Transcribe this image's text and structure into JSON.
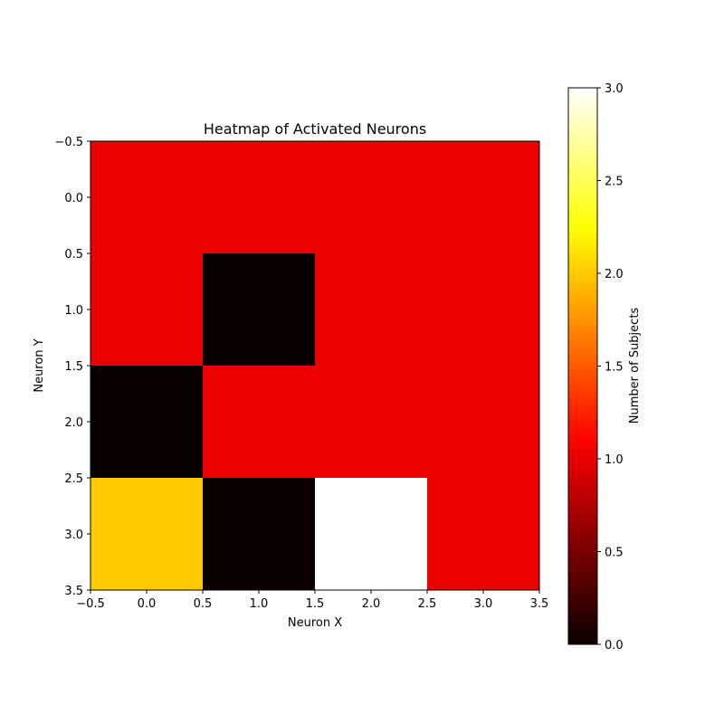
{
  "chart_data": {
    "type": "heatmap",
    "title": "Heatmap of Activated Neurons",
    "xlabel": "Neuron X",
    "ylabel": "Neuron Y",
    "colorbar_label": "Number of Subjects",
    "colormap": "hot",
    "vmin": 0.0,
    "vmax": 3.0,
    "xlim": [
      -0.5,
      3.5
    ],
    "ylim": [
      3.5,
      -0.5
    ],
    "x_ticks": [
      "−0.5",
      "0.0",
      "0.5",
      "1.0",
      "1.5",
      "2.0",
      "2.5",
      "3.0",
      "3.5"
    ],
    "y_ticks": [
      "−0.5",
      "0.0",
      "0.5",
      "1.0",
      "1.5",
      "2.0",
      "2.5",
      "3.0",
      "3.5"
    ],
    "colorbar_ticks": [
      "0.0",
      "0.5",
      "1.0",
      "1.5",
      "2.0",
      "2.5",
      "3.0"
    ],
    "values": [
      [
        1,
        1,
        1,
        1
      ],
      [
        1,
        0,
        1,
        1
      ],
      [
        0,
        1,
        1,
        1
      ],
      [
        2,
        0,
        3,
        1
      ]
    ]
  }
}
